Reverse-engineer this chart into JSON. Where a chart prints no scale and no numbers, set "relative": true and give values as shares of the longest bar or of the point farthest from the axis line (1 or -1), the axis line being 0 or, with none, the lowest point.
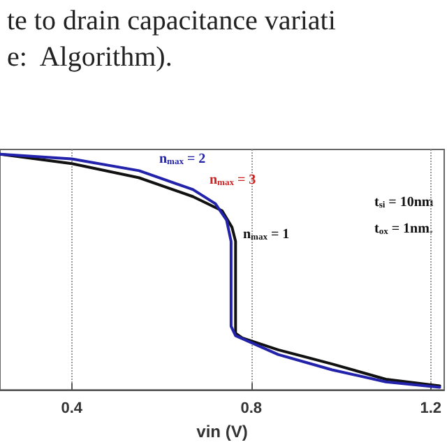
{
  "chart_data": {
    "type": "line",
    "title": "te to drain capacitance variati",
    "subtitle": "e:  Algorithm).",
    "xlabel": "vin (V)",
    "relative": true,
    "xlim": [
      0.24,
      1.23
    ],
    "xticks": [
      0.4,
      0.8,
      1.2
    ],
    "grid": "x",
    "marker": "none",
    "line_style": "solid",
    "annotations": [
      "t$_{si}$ = 10nm",
      "t$_{ox}$ = 1nm."
    ],
    "series": [
      {
        "name": "n$_{max}$ = 3",
        "color": "#cc2222"
      },
      {
        "name": "n$_{max}$ = 1",
        "color": "#111111",
        "x": [
          0.24,
          0.4,
          0.55,
          0.67,
          0.735,
          0.757,
          0.765,
          0.765,
          0.78,
          0.86,
          0.98,
          1.1,
          1.22
        ],
        "values": [
          1.0,
          0.96,
          0.9,
          0.82,
          0.76,
          0.69,
          0.63,
          0.24,
          0.22,
          0.17,
          0.11,
          0.045,
          0.017
        ]
      },
      {
        "name": "n$_{max}$ = 2",
        "color": "#2222aa",
        "x": [
          0.24,
          0.4,
          0.55,
          0.67,
          0.72,
          0.745,
          0.755,
          0.755,
          0.765,
          0.86,
          0.98,
          1.1,
          1.22
        ],
        "values": [
          1.0,
          0.98,
          0.93,
          0.85,
          0.79,
          0.72,
          0.63,
          0.27,
          0.23,
          0.15,
          0.085,
          0.034,
          0.011
        ]
      }
    ]
  }
}
